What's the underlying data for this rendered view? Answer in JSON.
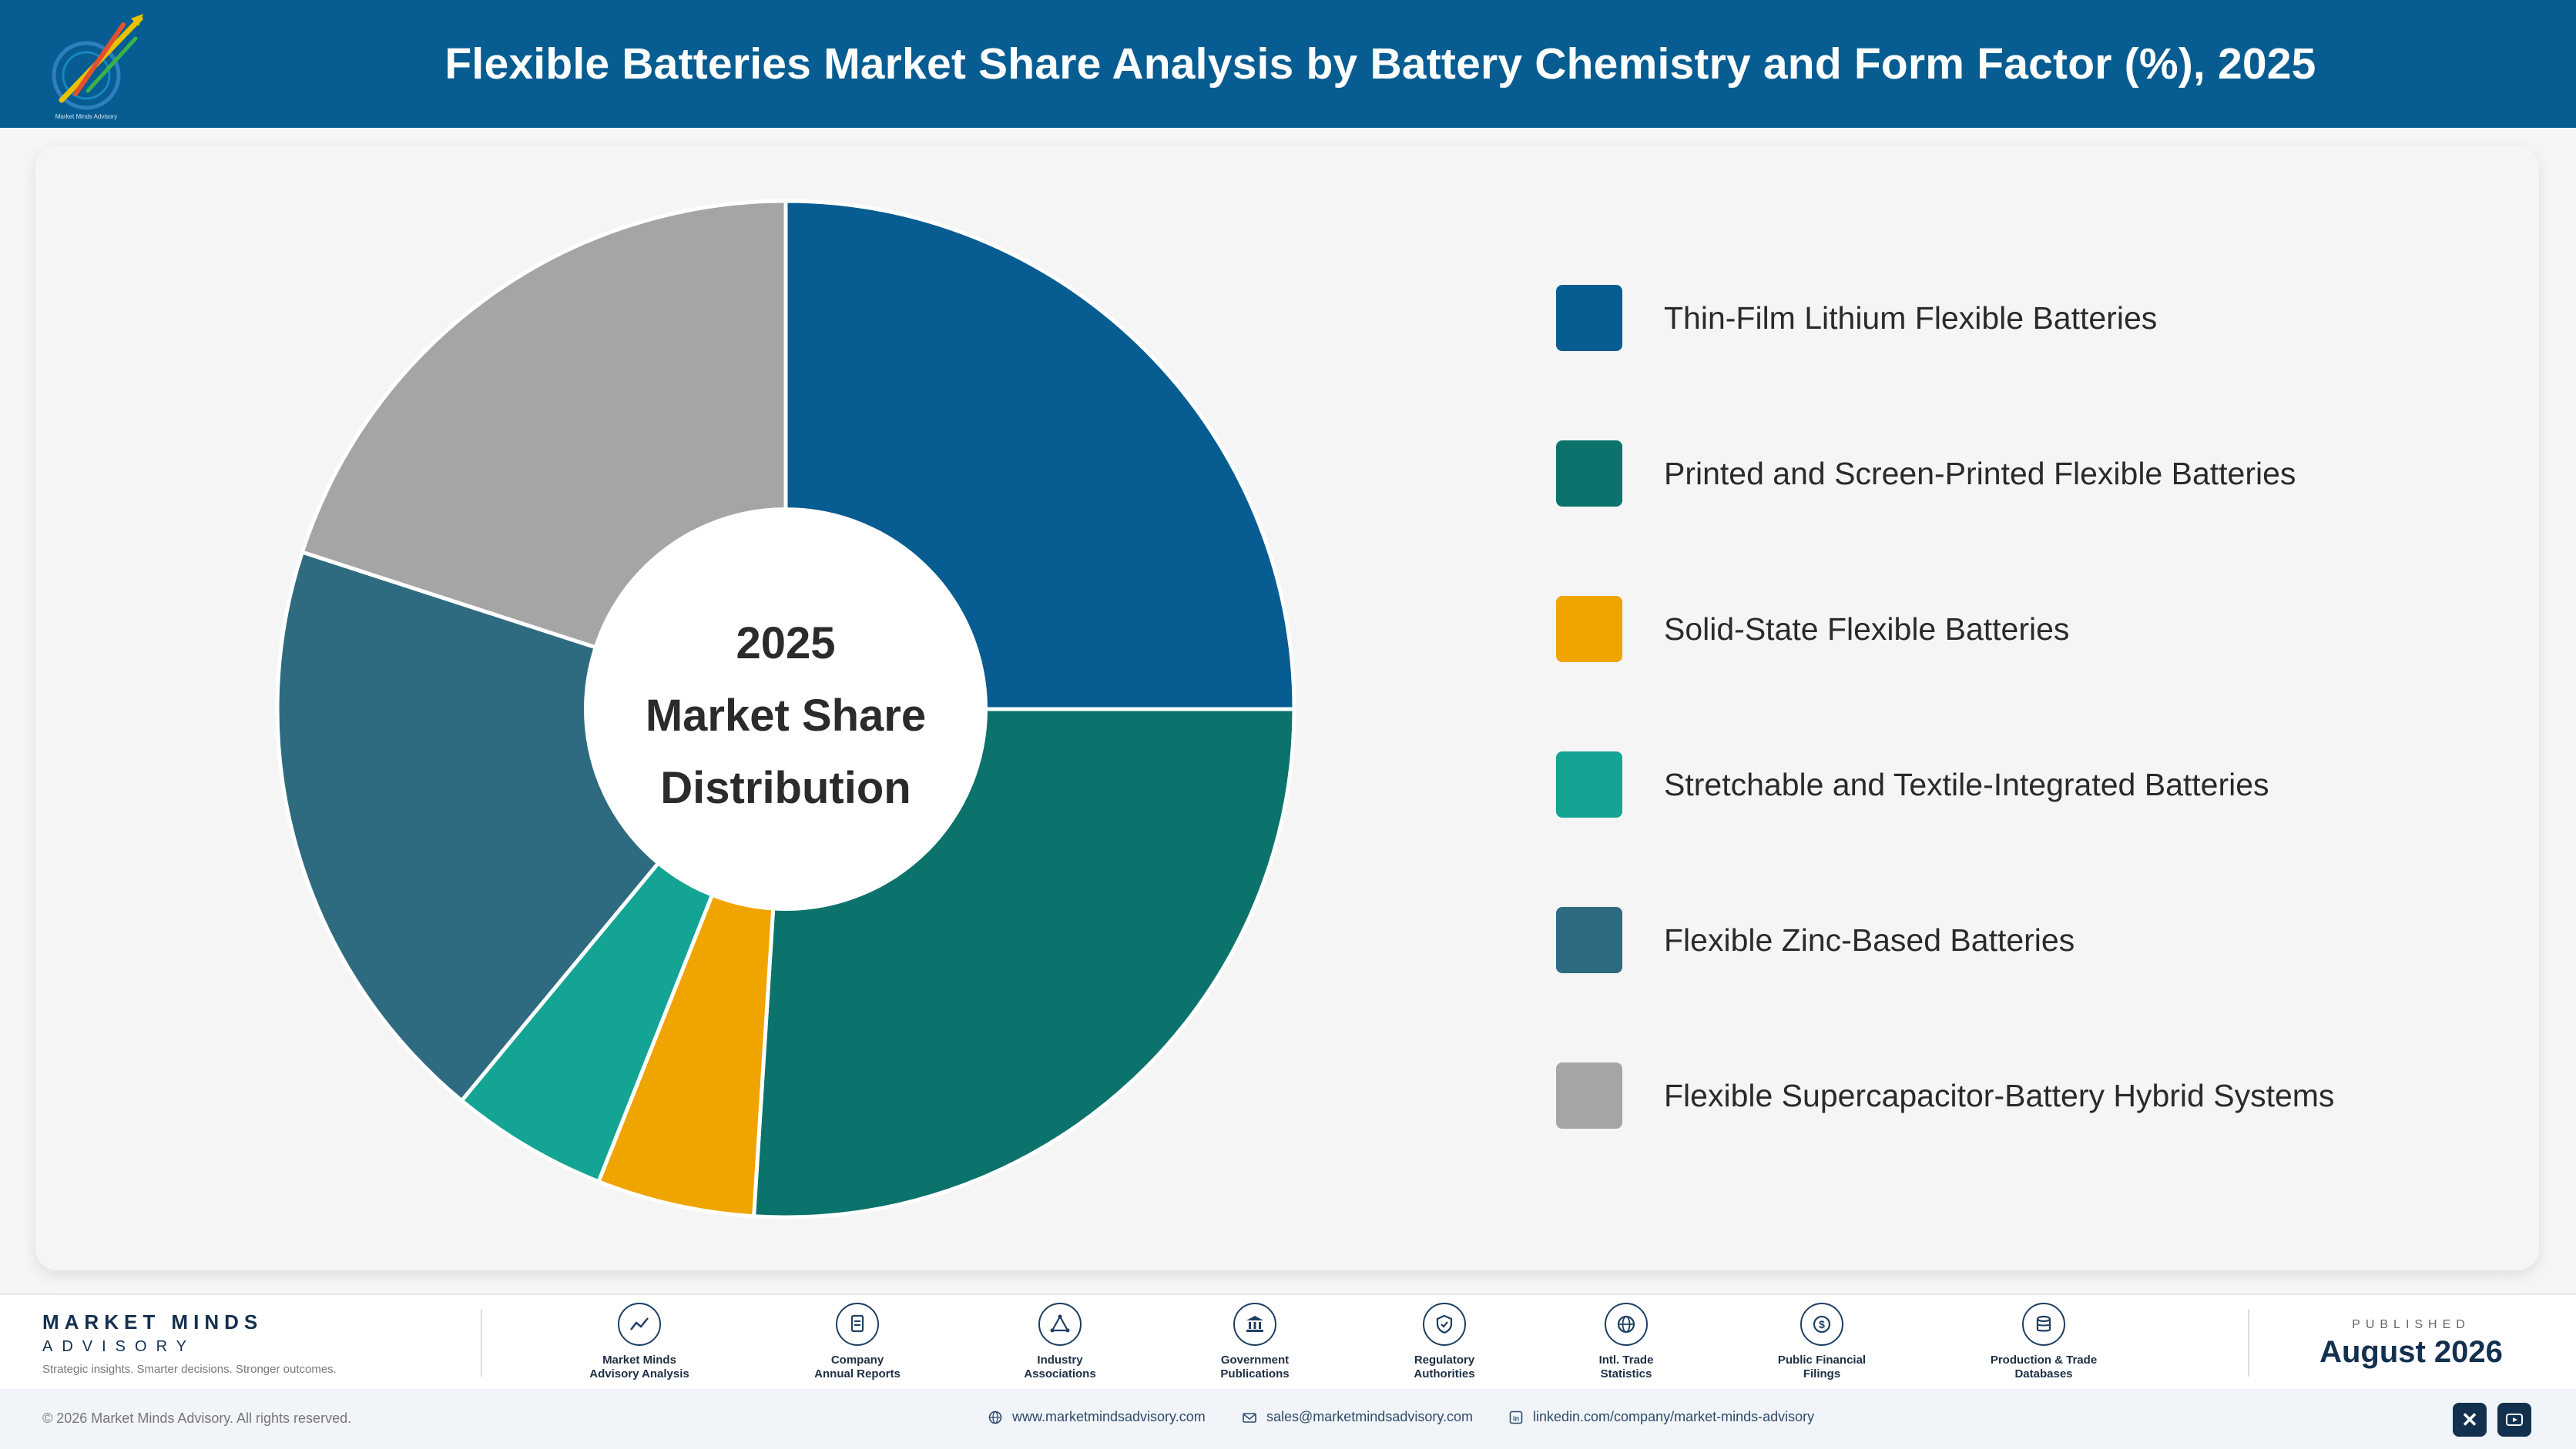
{
  "header": {
    "title": "Flexible Batteries Market Share Analysis by Battery Chemistry and Form Factor (%), 2025"
  },
  "center": {
    "line1": "2025",
    "line2": "Market Share",
    "line3": "Distribution"
  },
  "chart_data": {
    "type": "pie",
    "style": "donut",
    "categories": [
      "Thin-Film Lithium Flexible Batteries",
      "Printed and Screen-Printed Flexible Batteries",
      "Solid-State Flexible Batteries",
      "Stretchable and Textile-Integrated Batteries",
      "Flexible Zinc-Based Batteries",
      "Flexible Supercapacitor-Battery Hybrid Systems"
    ],
    "values": [
      25,
      26,
      5,
      5,
      19,
      20
    ],
    "colors": [
      "#075d91",
      "#0c736c",
      "#f0a400",
      "#13a493",
      "#2f6b80",
      "#a5a5a5"
    ],
    "legend_position": "right"
  },
  "footer": {
    "brand_name": "MARKET MINDS",
    "brand_sub": "ADVISORY",
    "tagline": "Strategic insights. Smarter decisions. Stronger outcomes.",
    "sources": [
      {
        "label": "Market Minds\nAdvisory Analysis",
        "icon": "trend-chart-icon"
      },
      {
        "label": "Company\nAnnual Reports",
        "icon": "document-icon"
      },
      {
        "label": "Industry\nAssociations",
        "icon": "network-icon"
      },
      {
        "label": "Government\nPublications",
        "icon": "government-building-icon"
      },
      {
        "label": "Regulatory\nAuthorities",
        "icon": "shield-check-icon"
      },
      {
        "label": "Intl. Trade\nStatistics",
        "icon": "globe-icon"
      },
      {
        "label": "Public Financial\nFilings",
        "icon": "currency-icon"
      },
      {
        "label": "Production & Trade\nDatabases",
        "icon": "database-icon"
      }
    ],
    "published_label": "PUBLISHED",
    "published_date": "August 2026"
  },
  "bottom": {
    "copyright": "© 2026 Market Minds Advisory. All rights reserved.",
    "website": "www.marketmindsadvisory.com",
    "email": "sales@marketmindsadvisory.com",
    "linkedin": "linkedin.com/company/market-minds-advisory"
  }
}
